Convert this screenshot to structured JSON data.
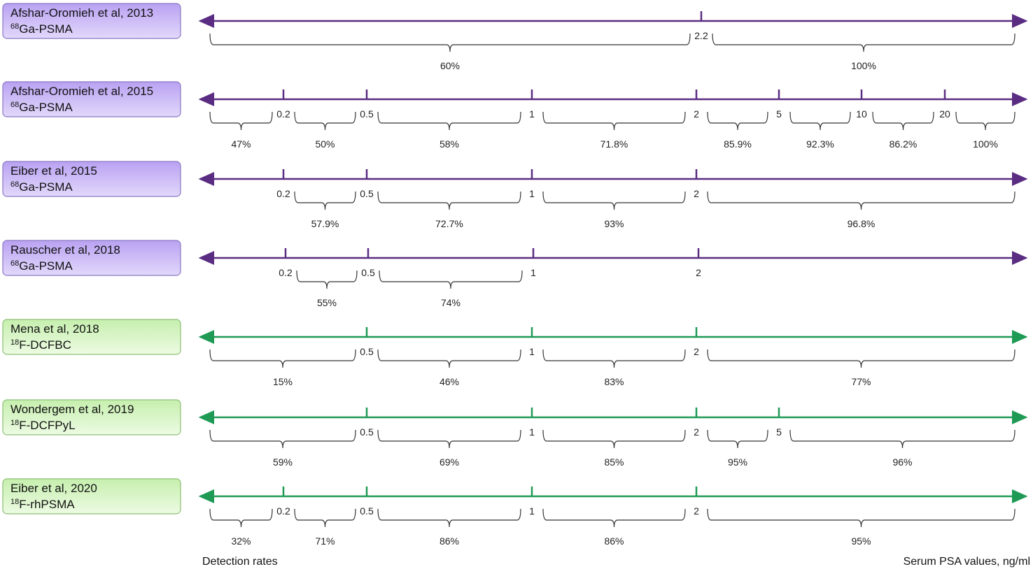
{
  "rows": [
    {
      "name": "Afshar-Oromieh et al, 2013",
      "isotope": "68",
      "tracer": "Ga-PSMA",
      "thresholds": [
        "2.2"
      ],
      "rates": [
        "60%",
        "100%"
      ]
    },
    {
      "name": "Afshar-Oromieh et al, 2015",
      "isotope": "68",
      "tracer": "Ga-PSMA",
      "thresholds": [
        "0.2",
        "0.5",
        "1",
        "2",
        "5",
        "10",
        "20"
      ],
      "rates": [
        "47%",
        "50%",
        "58%",
        "71.8%",
        "85.9%",
        "92.3%",
        "86.2%",
        "100%"
      ]
    },
    {
      "name": "Eiber et al, 2015",
      "isotope": "68",
      "tracer": "Ga-PSMA",
      "thresholds": [
        "0.2",
        "0.5",
        "1",
        "2"
      ],
      "rates": [
        "57.9%",
        "72.7%",
        "93%",
        "96.8%"
      ]
    },
    {
      "name": "Rauscher et al, 2018",
      "isotope": "68",
      "tracer": "Ga-PSMA",
      "thresholds": [
        "0.2",
        "0.5",
        "1",
        "2"
      ],
      "rates": [
        "55%",
        "74%"
      ]
    },
    {
      "name": "Mena et al, 2018",
      "isotope": "18",
      "tracer": "F-DCFBC",
      "thresholds": [
        "0.5",
        "1",
        "2"
      ],
      "rates": [
        "15%",
        "46%",
        "83%",
        "77%"
      ]
    },
    {
      "name": "Wondergem et al, 2019",
      "isotope": "18",
      "tracer": "F-DCFPyL",
      "thresholds": [
        "0.5",
        "1",
        "2",
        "5"
      ],
      "rates": [
        "59%",
        "69%",
        "85%",
        "95%",
        "96%"
      ]
    },
    {
      "name": "Eiber et al, 2020",
      "isotope": "18",
      "tracer": "F-rhPSMA",
      "thresholds": [
        "0.2",
        "0.5",
        "1",
        "2"
      ],
      "rates": [
        "32%",
        "71%",
        "86%",
        "86%",
        "95%"
      ]
    }
  ],
  "footer": {
    "left": "Detection rates",
    "right": "Serum PSA values, ng/ml"
  }
}
